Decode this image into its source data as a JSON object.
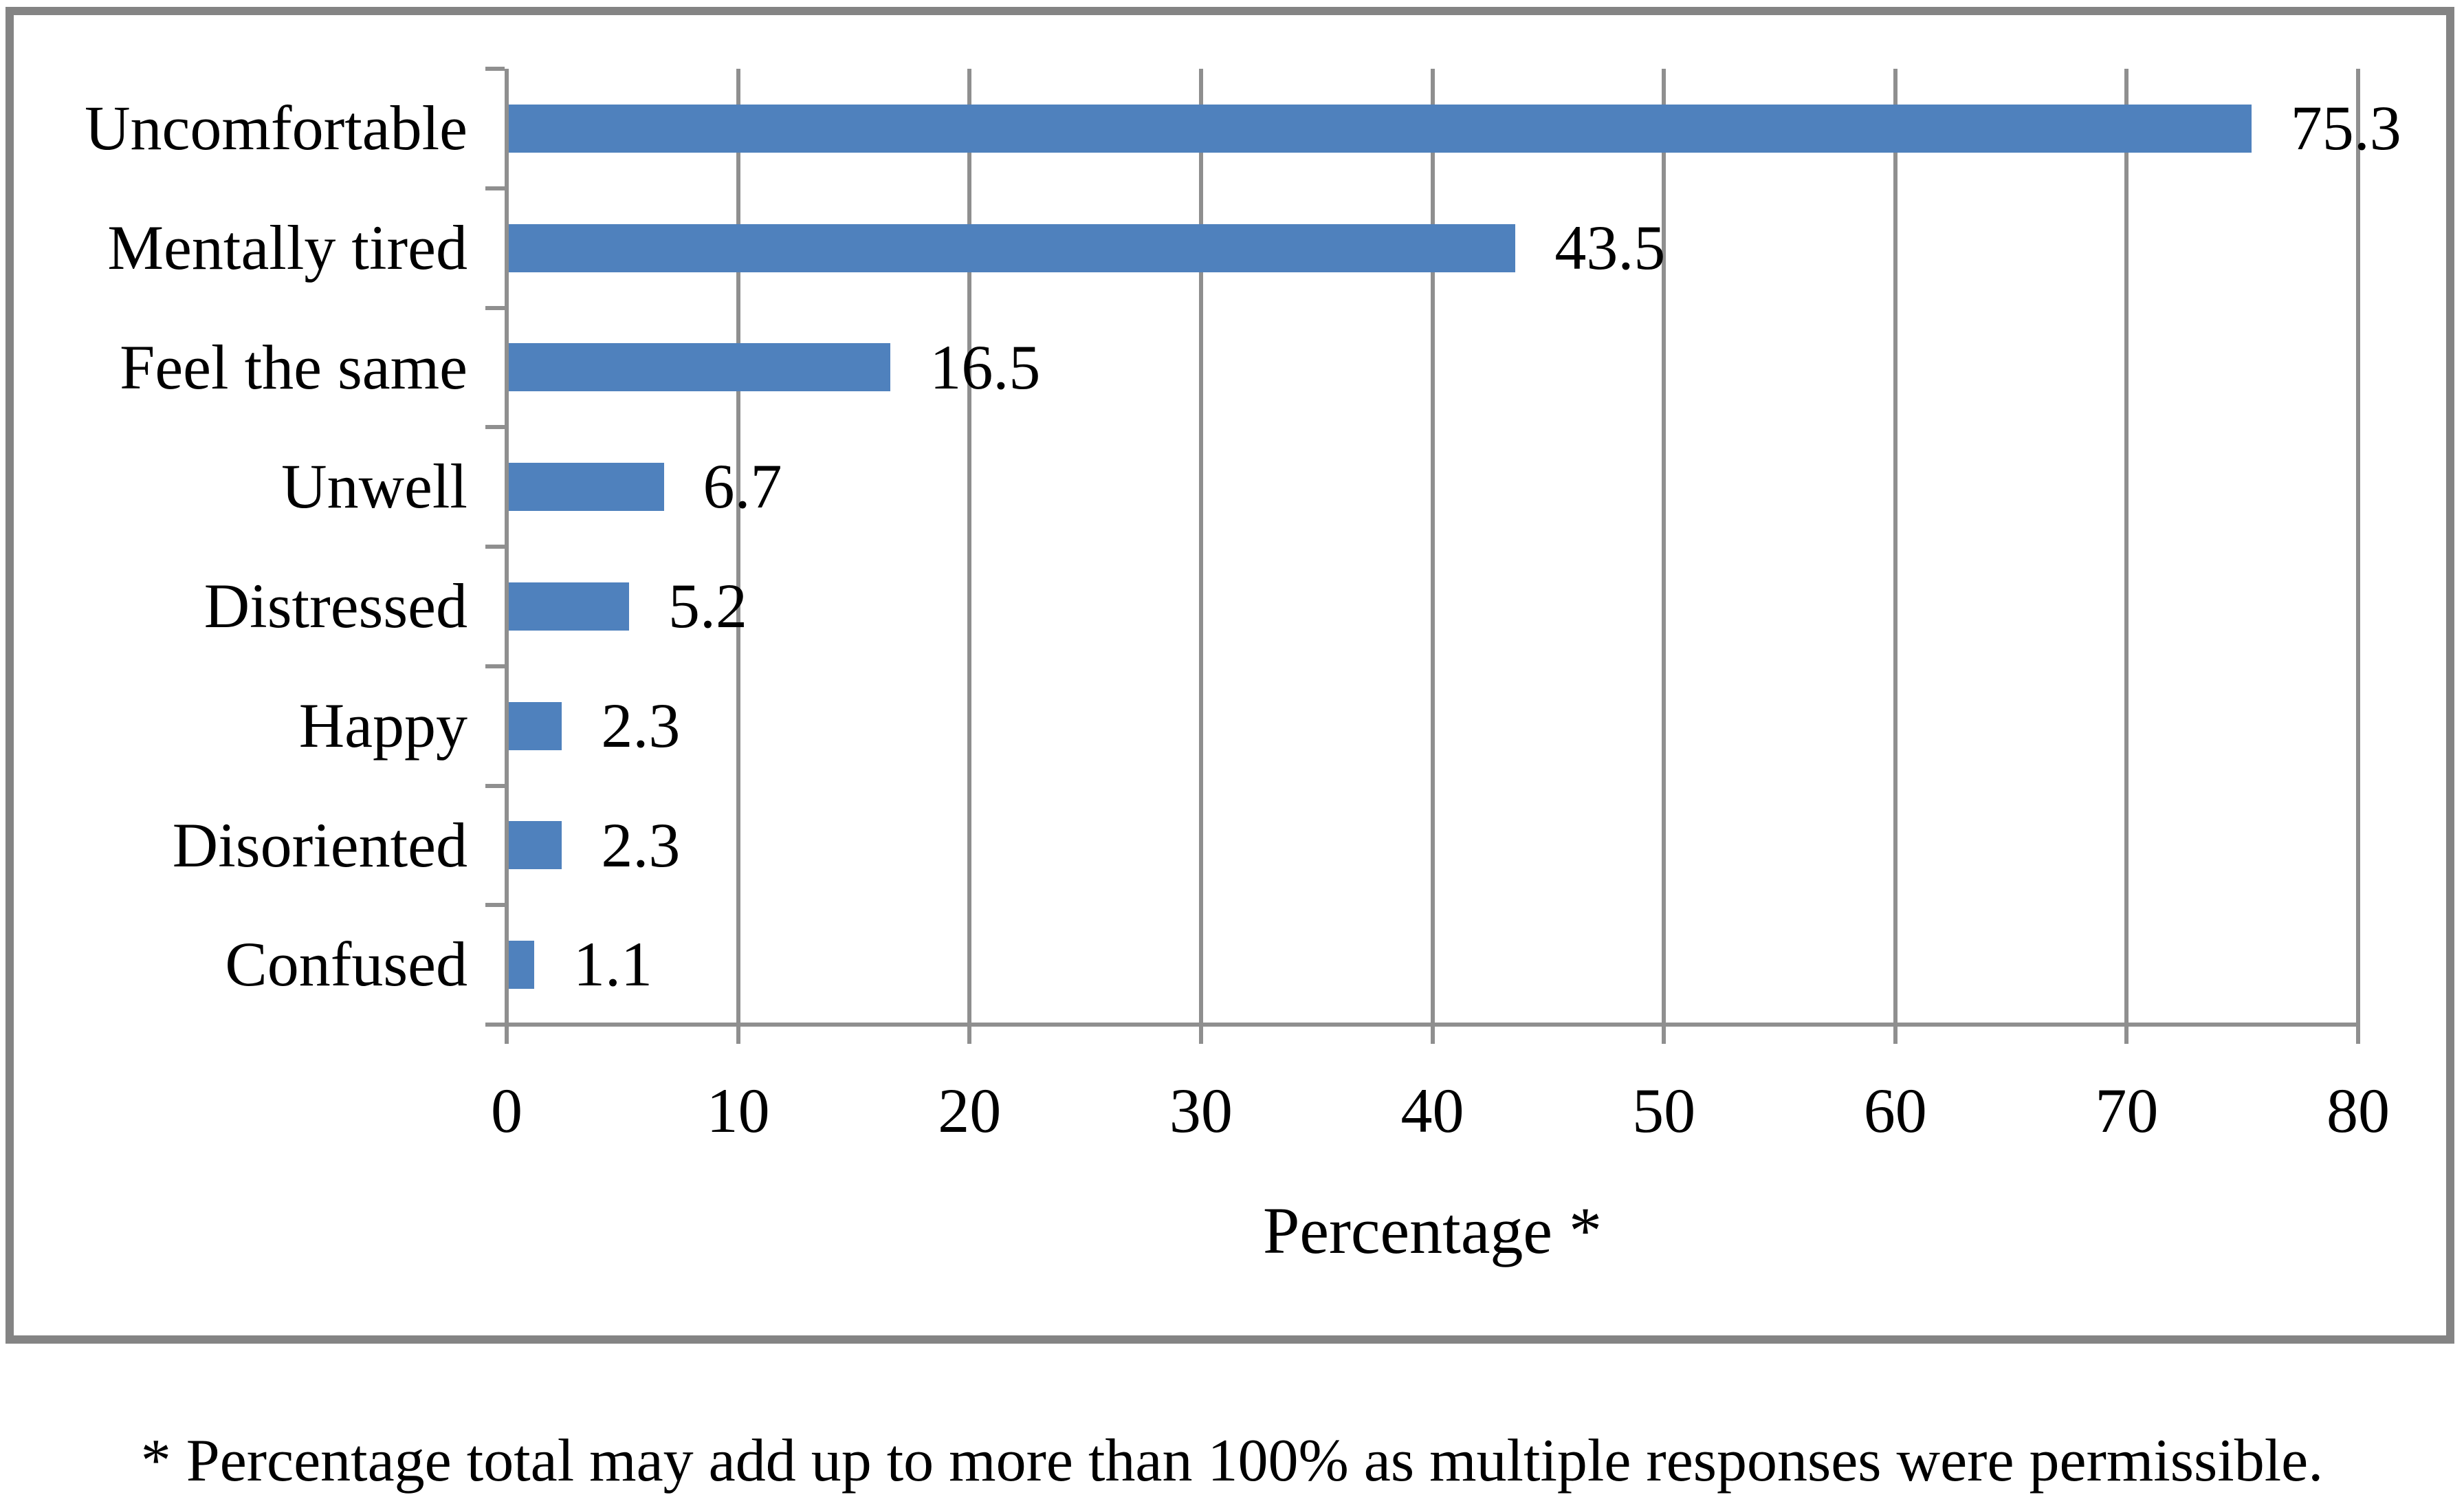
{
  "chart_data": {
    "type": "bar",
    "orientation": "horizontal",
    "title": "",
    "categories": [
      "Uncomfortable",
      "Mentally tired",
      "Feel the same",
      "Unwell",
      "Distressed",
      "Happy",
      "Disoriented",
      "Confused"
    ],
    "values": [
      75.3,
      43.5,
      16.5,
      6.7,
      5.2,
      2.3,
      2.3,
      1.1
    ],
    "value_labels": [
      "75.3",
      "43.5",
      "16.5",
      "6.7",
      "5.2",
      "2.3",
      "2.3",
      "1.1"
    ],
    "xlabel": "Percentage *",
    "ylabel": "",
    "x_ticks": [
      0,
      10,
      20,
      30,
      40,
      50,
      60,
      70,
      80
    ],
    "xlim": [
      0,
      80
    ],
    "grid": "vertical-gridlines-on",
    "legend": "none",
    "bar_color": "#4F81BD",
    "grid_color": "#8f8f8f",
    "axis_color": "#8f8f8f",
    "frame_border_color": "#848484"
  },
  "footnote": "* Percentage total may add up to more than 100% as multiple responses were permissible."
}
